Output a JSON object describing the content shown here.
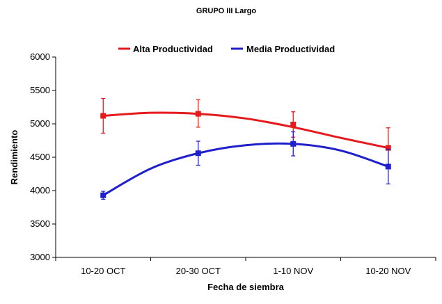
{
  "chart_data": {
    "type": "line",
    "title": "GRUPO III Largo",
    "xlabel": "Fecha de siembra",
    "ylabel": "Rendimiento",
    "categories": [
      "10-20 OCT",
      "20-30 OCT",
      "1-10 NOV",
      "10-20 NOV"
    ],
    "ylim": [
      3000,
      6000
    ],
    "yticks": [
      3000,
      3500,
      4000,
      4500,
      5000,
      5500,
      6000
    ],
    "grid": false,
    "legend": "top",
    "series": [
      {
        "name": "Alta Productividad",
        "color": "#e41a1c",
        "marker": "square",
        "values": [
          5120,
          5150,
          4990,
          4640
        ],
        "error_low": [
          4860,
          4950,
          4800,
          4350
        ],
        "error_high": [
          5380,
          5360,
          5180,
          4940
        ],
        "fit_curve": [
          5120,
          5165,
          5150,
          5080,
          4950,
          4790,
          4640
        ]
      },
      {
        "name": "Media Productividad",
        "color": "#1f1fcc",
        "marker": "square",
        "values": [
          3930,
          4560,
          4700,
          4360
        ],
        "error_low": [
          3870,
          4380,
          4520,
          4100
        ],
        "error_high": [
          3990,
          4740,
          4880,
          4620
        ],
        "fit_curve": [
          3930,
          4330,
          4560,
          4680,
          4700,
          4600,
          4360
        ]
      }
    ]
  }
}
